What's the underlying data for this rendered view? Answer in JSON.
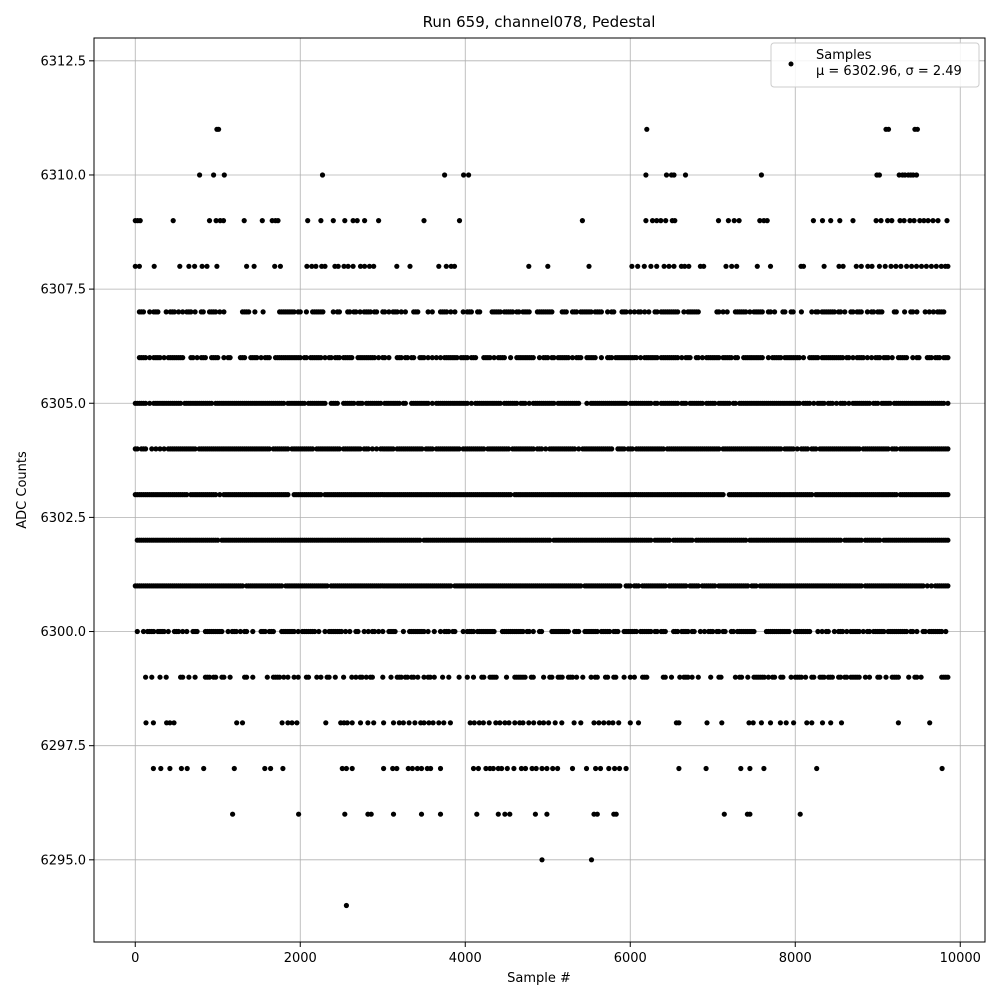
{
  "chart_data": {
    "type": "scatter",
    "title": "Run 659, channel078, Pedestal",
    "xlabel": "Sample #",
    "ylabel": "ADC Counts",
    "xlim": [
      -500,
      10300
    ],
    "ylim": [
      6293.2,
      6313.0
    ],
    "x_ticks": [
      0,
      2000,
      4000,
      6000,
      8000,
      10000
    ],
    "x_tick_labels": [
      "0",
      "2000",
      "4000",
      "6000",
      "8000",
      "10000"
    ],
    "y_ticks": [
      6295.0,
      6297.5,
      6300.0,
      6302.5,
      6305.0,
      6307.5,
      6310.0,
      6312.5
    ],
    "y_tick_labels": [
      "6295.0",
      "6297.5",
      "6300.0",
      "6302.5",
      "6305.0",
      "6307.5",
      "6310.0",
      "6312.5"
    ],
    "grid": true,
    "legend": {
      "placement": "upper right",
      "entry": "Samples",
      "stats_text": "μ = 6302.96, σ = 2.49"
    },
    "marker_color": "#000000",
    "series": [
      {
        "name": "Samples",
        "levels": [
          {
            "y": 6311,
            "x": [
              990,
              1010,
              6200,
              9100,
              9130,
              9450,
              9480
            ]
          },
          {
            "y": 6310,
            "x": [
              780,
              950,
              1080,
              2270,
              3750,
              3980,
              4040,
              6190,
              6440,
              6500,
              6530,
              6670,
              7590,
              8990,
              9020,
              9260,
              9300,
              9330,
              9370,
              9400,
              9430,
              9470
            ]
          },
          {
            "y": 6309,
            "x": [
              0,
              30,
              60,
              460,
              900,
              980,
              1030,
              1070,
              1320,
              1540,
              1660,
              1700,
              1730,
              2090,
              2250,
              2400,
              2540,
              2640,
              2690,
              2780,
              2950,
              3500,
              3930,
              5420,
              6190,
              6270,
              6320,
              6370,
              6430,
              6510,
              6540,
              7070,
              7190,
              7260,
              7320,
              7570,
              7620,
              7660,
              8220,
              8330,
              8430,
              8540,
              8700,
              8980,
              9040,
              9120,
              9170,
              9270,
              9320,
              9390,
              9440,
              9510,
              9560,
              9610,
              9670,
              9730,
              9840
            ]
          },
          {
            "y": 6308,
            "x": [
              0,
              50,
              230,
              540,
              650,
              720,
              810,
              870,
              990,
              1350,
              1440,
              1690,
              1760,
              2080,
              2140,
              2190,
              2260,
              2300,
              2420,
              2460,
              2530,
              2580,
              2640,
              2730,
              2780,
              2840,
              2890,
              3170,
              3330,
              3680,
              3770,
              3830,
              3870,
              4770,
              5000,
              5500,
              6020,
              6090,
              6170,
              6250,
              6320,
              6410,
              6470,
              6530,
              6620,
              6660,
              6710,
              6850,
              6890,
              7160,
              7230,
              7290,
              7540,
              7700,
              8070,
              8100,
              8350,
              8530,
              8580,
              8740,
              8800,
              8880,
              8930,
              9020,
              9090,
              9160,
              9220,
              9280,
              9350,
              9410,
              9470,
              9530,
              9590,
              9650,
              9710,
              9770,
              9820,
              9850
            ]
          }
        ],
        "dense_bands": [
          {
            "y": 6307,
            "x_start": 0,
            "x_end": 9850,
            "density": 0.55
          },
          {
            "y": 6306,
            "x_start": 0,
            "x_end": 9850,
            "density": 0.7
          },
          {
            "y": 6305,
            "x_start": 0,
            "x_end": 9850,
            "density": 0.9
          },
          {
            "y": 6304,
            "x_start": 0,
            "x_end": 9850,
            "density": 0.92
          },
          {
            "y": 6303,
            "x_start": 0,
            "x_end": 9850,
            "density": 0.95
          },
          {
            "y": 6302,
            "x_start": 0,
            "x_end": 9850,
            "density": 0.97
          },
          {
            "y": 6301,
            "x_start": 0,
            "x_end": 9850,
            "density": 0.95
          },
          {
            "y": 6300,
            "x_start": 0,
            "x_end": 9850,
            "density": 0.7
          },
          {
            "y": 6299,
            "x_start": 100,
            "x_end": 9850,
            "density": 0.45
          }
        ],
        "sparse_levels": [
          {
            "y": 6298,
            "x": [
              130,
              220,
              380,
              420,
              470,
              1230,
              1300,
              1780,
              1850,
              1900,
              1960,
              2310,
              2490,
              2530,
              2570,
              2630,
              2730,
              2820,
              2890,
              3010,
              3130,
              3200,
              3250,
              3320,
              3390,
              3460,
              3500,
              3560,
              3610,
              3680,
              3740,
              3820,
              4060,
              4110,
              4170,
              4220,
              4290,
              4370,
              4420,
              4480,
              4530,
              4600,
              4660,
              4700,
              4770,
              4830,
              4900,
              4950,
              5010,
              5090,
              5170,
              5320,
              5400,
              5560,
              5620,
              5680,
              5740,
              5790,
              5860,
              6000,
              6100,
              6560,
              6590,
              6930,
              7110,
              7440,
              7490,
              7590,
              7700,
              7820,
              7890,
              7980,
              8140,
              8200,
              8330,
              8430,
              8560,
              9250,
              9630
            ]
          },
          {
            "y": 6297,
            "x": [
              220,
              310,
              420,
              560,
              630,
              830,
              1200,
              1570,
              1640,
              1790,
              2510,
              2560,
              2630,
              3010,
              3120,
              3170,
              3310,
              3360,
              3420,
              3470,
              3540,
              3580,
              3700,
              4100,
              4160,
              4250,
              4300,
              4340,
              4400,
              4440,
              4510,
              4590,
              4680,
              4730,
              4810,
              4860,
              4930,
              4990,
              5060,
              5120,
              5300,
              5470,
              5580,
              5640,
              5740,
              5810,
              5870,
              5950,
              6590,
              6920,
              7340,
              7450,
              7620,
              8260,
              9780
            ]
          },
          {
            "y": 6296,
            "x": [
              1180,
              1980,
              2540,
              2820,
              2860,
              3130,
              3470,
              3700,
              4140,
              4400,
              4480,
              4540,
              4850,
              4990,
              5560,
              5600,
              5800,
              5830,
              7140,
              7420,
              7450,
              8060
            ]
          },
          {
            "y": 6295,
            "x": [
              4930,
              5530
            ]
          },
          {
            "y": 6294,
            "x": [
              2560
            ]
          }
        ]
      }
    ]
  }
}
